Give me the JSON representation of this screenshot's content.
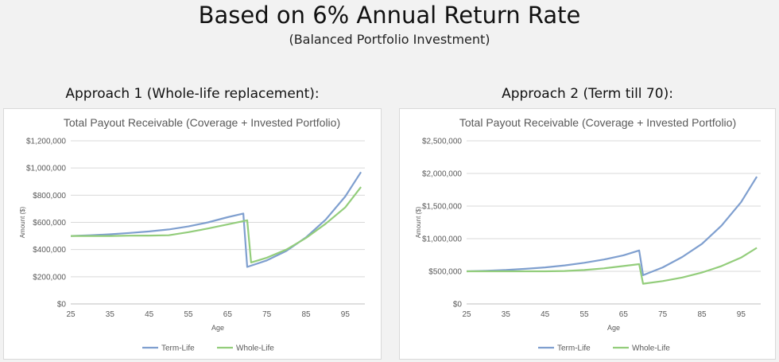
{
  "page": {
    "title": "Based on 6% Annual Return Rate",
    "subtitle": "(Balanced Portfolio Investment)"
  },
  "approaches": [
    {
      "heading": "Approach 1 (Whole-life replacement):"
    },
    {
      "heading": "Approach 2 (Term till 70):"
    }
  ],
  "chart_data": [
    {
      "type": "line",
      "title": "Total Payout Receivable (Coverage + Invested Portfolio)",
      "xlabel": "Age",
      "ylabel": "Amount ($)",
      "xlim": [
        25,
        100
      ],
      "ylim": [
        0,
        1200000
      ],
      "x_ticks": [
        "25",
        "35",
        "45",
        "55",
        "65",
        "75",
        "85",
        "95"
      ],
      "y_ticks": [
        "$0",
        "$200,000",
        "$400,000",
        "$600,000",
        "$800,000",
        "$1,000,000",
        "$1,200,000"
      ],
      "grid": true,
      "legend_position": "bottom",
      "series": [
        {
          "name": "Term-Life",
          "color": "#7f9fcf",
          "points": [
            [
              25,
              500000
            ],
            [
              30,
              505000
            ],
            [
              35,
              512000
            ],
            [
              40,
              522000
            ],
            [
              45,
              533000
            ],
            [
              50,
              548000
            ],
            [
              55,
              570000
            ],
            [
              60,
              600000
            ],
            [
              65,
              638000
            ],
            [
              69,
              665000
            ],
            [
              70,
              272000
            ],
            [
              75,
              320000
            ],
            [
              80,
              390000
            ],
            [
              85,
              490000
            ],
            [
              90,
              620000
            ],
            [
              95,
              790000
            ],
            [
              99,
              970000
            ]
          ]
        },
        {
          "name": "Whole-Life",
          "color": "#93cd7b",
          "points": [
            [
              25,
              500000
            ],
            [
              30,
              500000
            ],
            [
              35,
              500000
            ],
            [
              40,
              502000
            ],
            [
              45,
              503000
            ],
            [
              50,
              505000
            ],
            [
              55,
              528000
            ],
            [
              60,
              555000
            ],
            [
              65,
              585000
            ],
            [
              70,
              615000
            ],
            [
              71,
              305000
            ],
            [
              75,
              340000
            ],
            [
              80,
              400000
            ],
            [
              85,
              485000
            ],
            [
              90,
              590000
            ],
            [
              95,
              710000
            ],
            [
              99,
              860000
            ]
          ]
        }
      ]
    },
    {
      "type": "line",
      "title": "Total Payout Receivable (Coverage + Invested Portfolio)",
      "xlabel": "Age",
      "ylabel": "Amount ($)",
      "xlim": [
        25,
        100
      ],
      "ylim": [
        0,
        2500000
      ],
      "x_ticks": [
        "25",
        "35",
        "45",
        "55",
        "65",
        "75",
        "85",
        "95"
      ],
      "y_ticks": [
        "$0",
        "$500,000",
        "$1,000,000",
        "$1,500,000",
        "$2,000,000",
        "$2,500,000"
      ],
      "grid": true,
      "legend_position": "bottom",
      "series": [
        {
          "name": "Term-Life",
          "color": "#7f9fcf",
          "points": [
            [
              25,
              500000
            ],
            [
              30,
              508000
            ],
            [
              35,
              520000
            ],
            [
              40,
              538000
            ],
            [
              45,
              560000
            ],
            [
              50,
              590000
            ],
            [
              55,
              630000
            ],
            [
              60,
              680000
            ],
            [
              65,
              745000
            ],
            [
              69,
              820000
            ],
            [
              70,
              440000
            ],
            [
              75,
              560000
            ],
            [
              80,
              720000
            ],
            [
              85,
              920000
            ],
            [
              90,
              1200000
            ],
            [
              95,
              1560000
            ],
            [
              99,
              1950000
            ]
          ]
        },
        {
          "name": "Whole-Life",
          "color": "#93cd7b",
          "points": [
            [
              25,
              500000
            ],
            [
              30,
              500000
            ],
            [
              35,
              500000
            ],
            [
              40,
              500000
            ],
            [
              45,
              500000
            ],
            [
              50,
              505000
            ],
            [
              55,
              520000
            ],
            [
              60,
              545000
            ],
            [
              65,
              580000
            ],
            [
              69,
              610000
            ],
            [
              70,
              310000
            ],
            [
              75,
              350000
            ],
            [
              80,
              405000
            ],
            [
              85,
              480000
            ],
            [
              90,
              580000
            ],
            [
              95,
              710000
            ],
            [
              99,
              860000
            ]
          ]
        }
      ]
    }
  ]
}
